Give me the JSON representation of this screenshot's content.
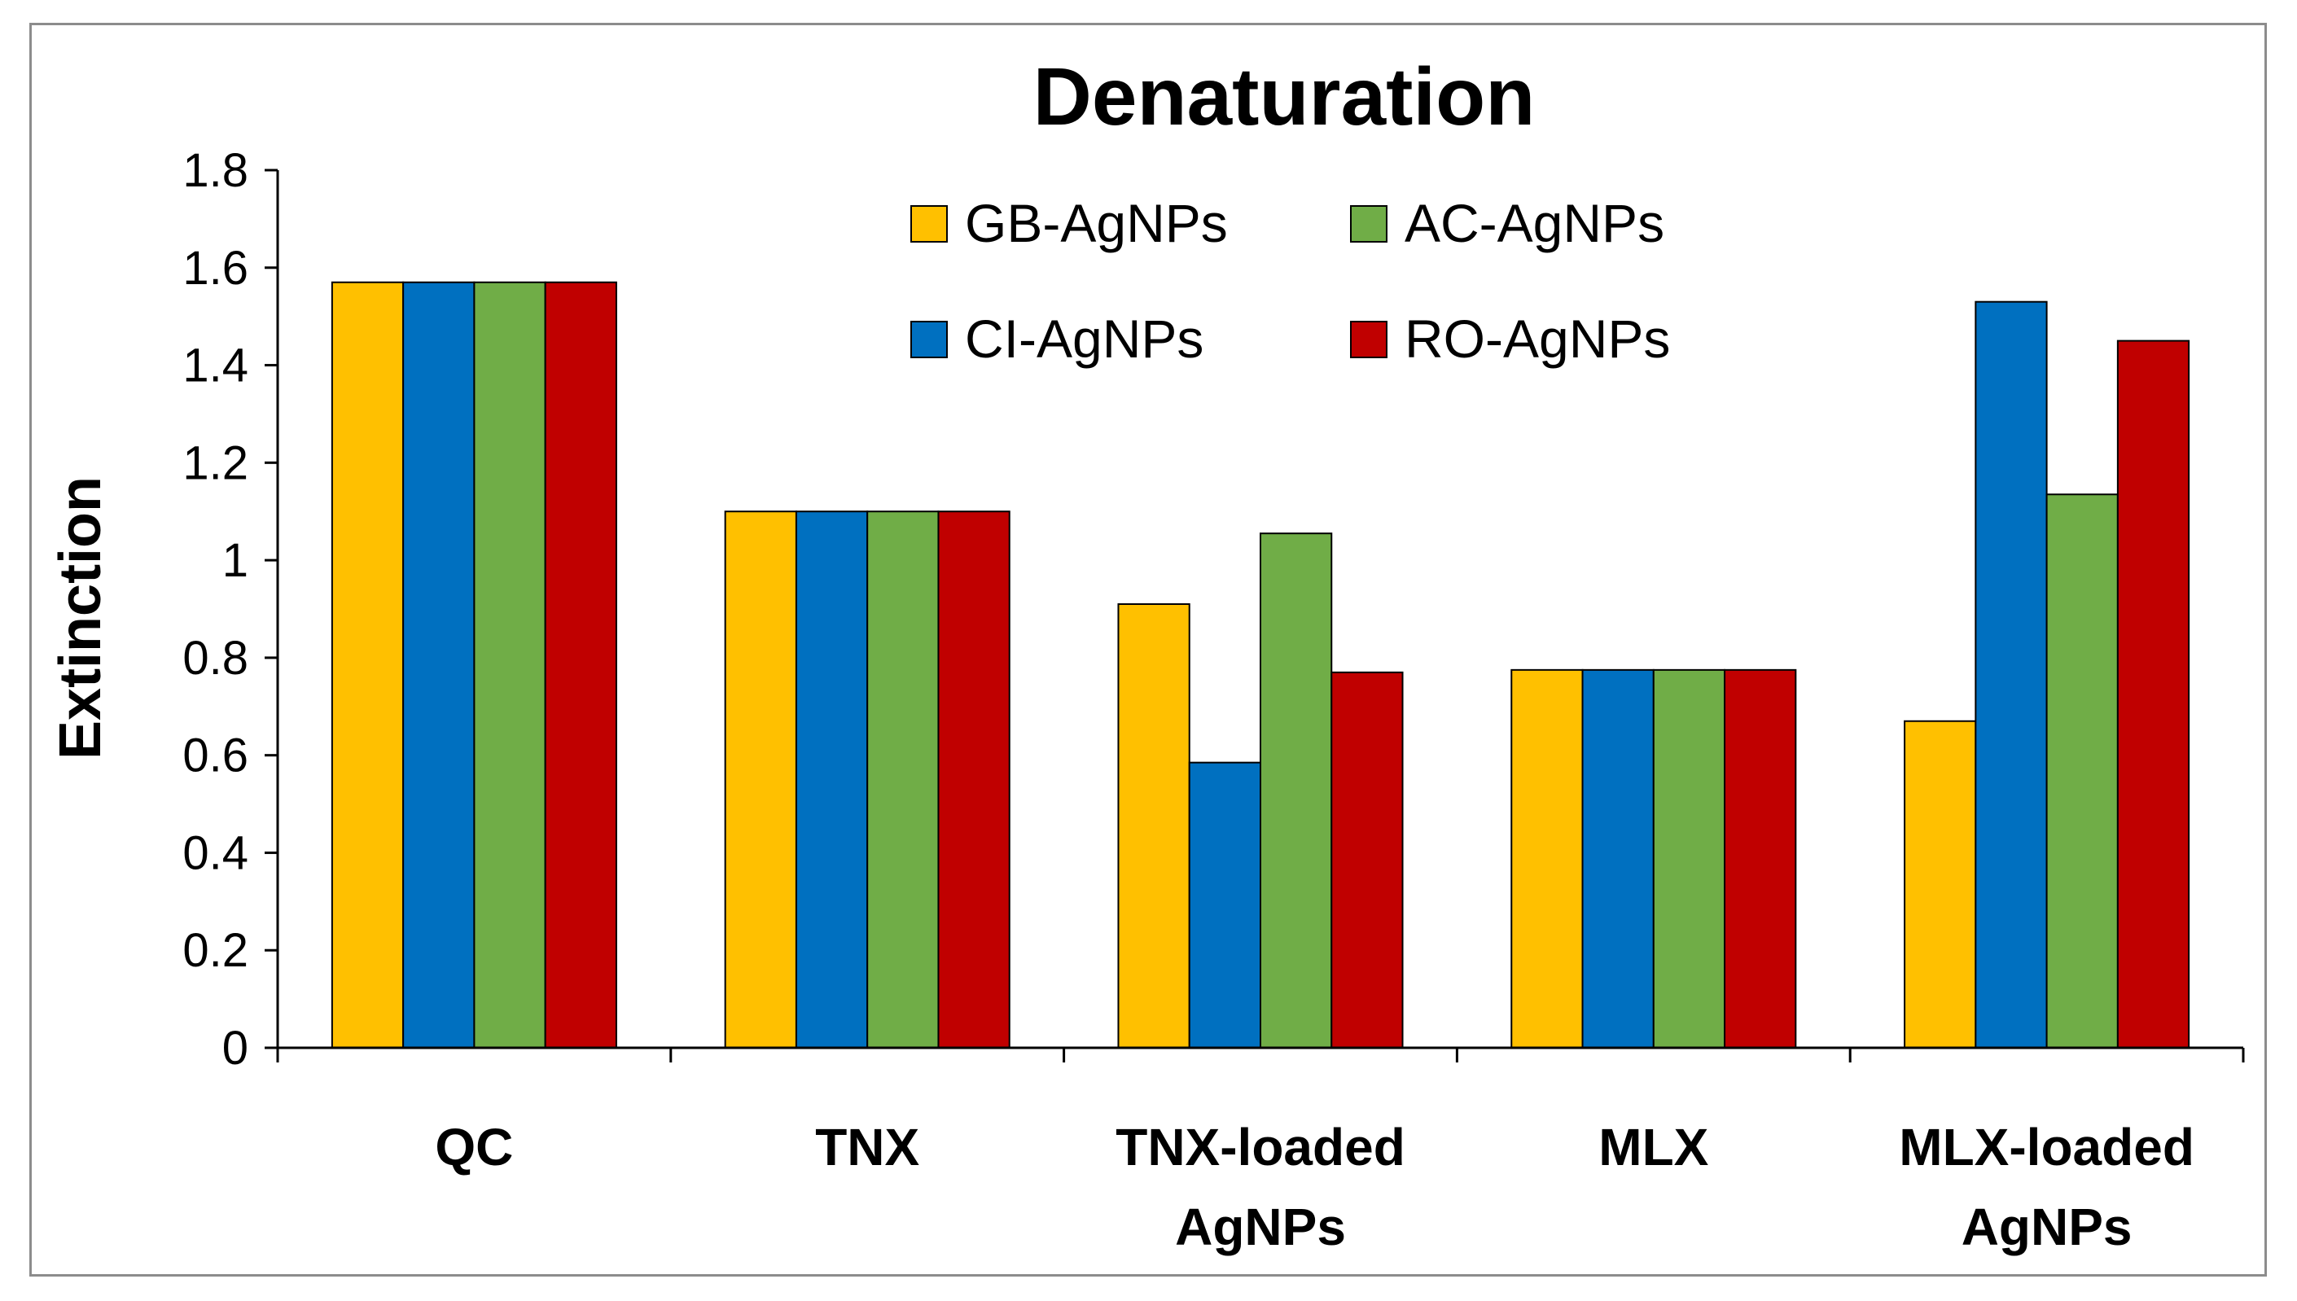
{
  "chart_data": {
    "type": "bar",
    "title": "Denaturation",
    "xlabel": "",
    "ylabel": "Extinction",
    "ylim": [
      0,
      1.8
    ],
    "yticks": [
      0,
      0.2,
      0.4,
      0.6,
      0.8,
      1,
      1.2,
      1.4,
      1.6,
      1.8
    ],
    "ytick_labels": [
      "0",
      "0.2",
      "0.4",
      "0.6",
      "0.8",
      "1",
      "1.2",
      "1.4",
      "1.6",
      "1.8"
    ],
    "grid": false,
    "legend_position": "top",
    "categories": [
      [
        "QC"
      ],
      [
        "TNX"
      ],
      [
        "TNX-loaded",
        "AgNPs"
      ],
      [
        "MLX"
      ],
      [
        "MLX-loaded",
        "AgNPs"
      ]
    ],
    "series": [
      {
        "name": "GB-AgNPs",
        "color": "#FFC000",
        "values": [
          1.57,
          1.1,
          0.91,
          0.775,
          0.67
        ]
      },
      {
        "name": "CI-AgNPs",
        "color": "#0070C0",
        "values": [
          1.57,
          1.1,
          0.585,
          0.775,
          1.53
        ]
      },
      {
        "name": "AC-AgNPs",
        "color": "#70AD47",
        "values": [
          1.57,
          1.1,
          1.055,
          0.775,
          1.135
        ]
      },
      {
        "name": "RO-AgNPs",
        "color": "#C00000",
        "values": [
          1.57,
          1.1,
          0.77,
          0.775,
          1.45
        ]
      }
    ],
    "legend_order": [
      "GB-AgNPs",
      "AC-AgNPs",
      "CI-AgNPs",
      "RO-AgNPs"
    ]
  }
}
